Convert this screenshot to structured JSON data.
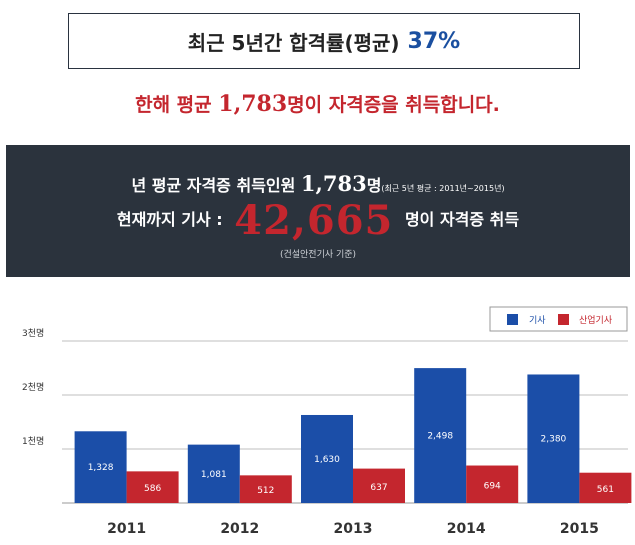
{
  "headline": {
    "text": "최근 5년간 합격률(평균)",
    "percent": "37%"
  },
  "subline": {
    "before": "한해 평균 ",
    "number": "1,783",
    "after": "명이 자격증을 취득합니다."
  },
  "panel": {
    "line1_before": "년 평균 자격증 취득인원 ",
    "line1_number": "1,783",
    "line1_unit": "명",
    "line1_note": "(최근 5년 평균 : 2011년~2015년)",
    "line2_before": "현재까지 기사 : ",
    "line2_number": "42,665",
    "line2_after": " 명이 자격증 취득",
    "note": "(건설안전기사 기준)"
  },
  "colors": {
    "blue": "#1b4ea8",
    "red": "#c4262e",
    "dark": "#2b333d"
  },
  "chart_data": {
    "type": "bar",
    "categories": [
      "2011",
      "2012",
      "2013",
      "2014",
      "2015"
    ],
    "series": [
      {
        "name": "기사",
        "values": [
          1328,
          1081,
          1630,
          2498,
          2380
        ],
        "labels": [
          "1,328",
          "1,081",
          "1,630",
          "2,498",
          "2,380"
        ],
        "color": "#1b4ea8"
      },
      {
        "name": "산업기사",
        "values": [
          586,
          512,
          637,
          694,
          561
        ],
        "labels": [
          "586",
          "512",
          "637",
          "694",
          "561"
        ],
        "color": "#c4262e"
      }
    ],
    "yticks": [
      {
        "value": 1000,
        "label": "1천명"
      },
      {
        "value": 2000,
        "label": "2천명"
      },
      {
        "value": 3000,
        "label": "3천명"
      }
    ],
    "ylim": [
      0,
      3000
    ],
    "grid": true,
    "legend": "top-right"
  }
}
